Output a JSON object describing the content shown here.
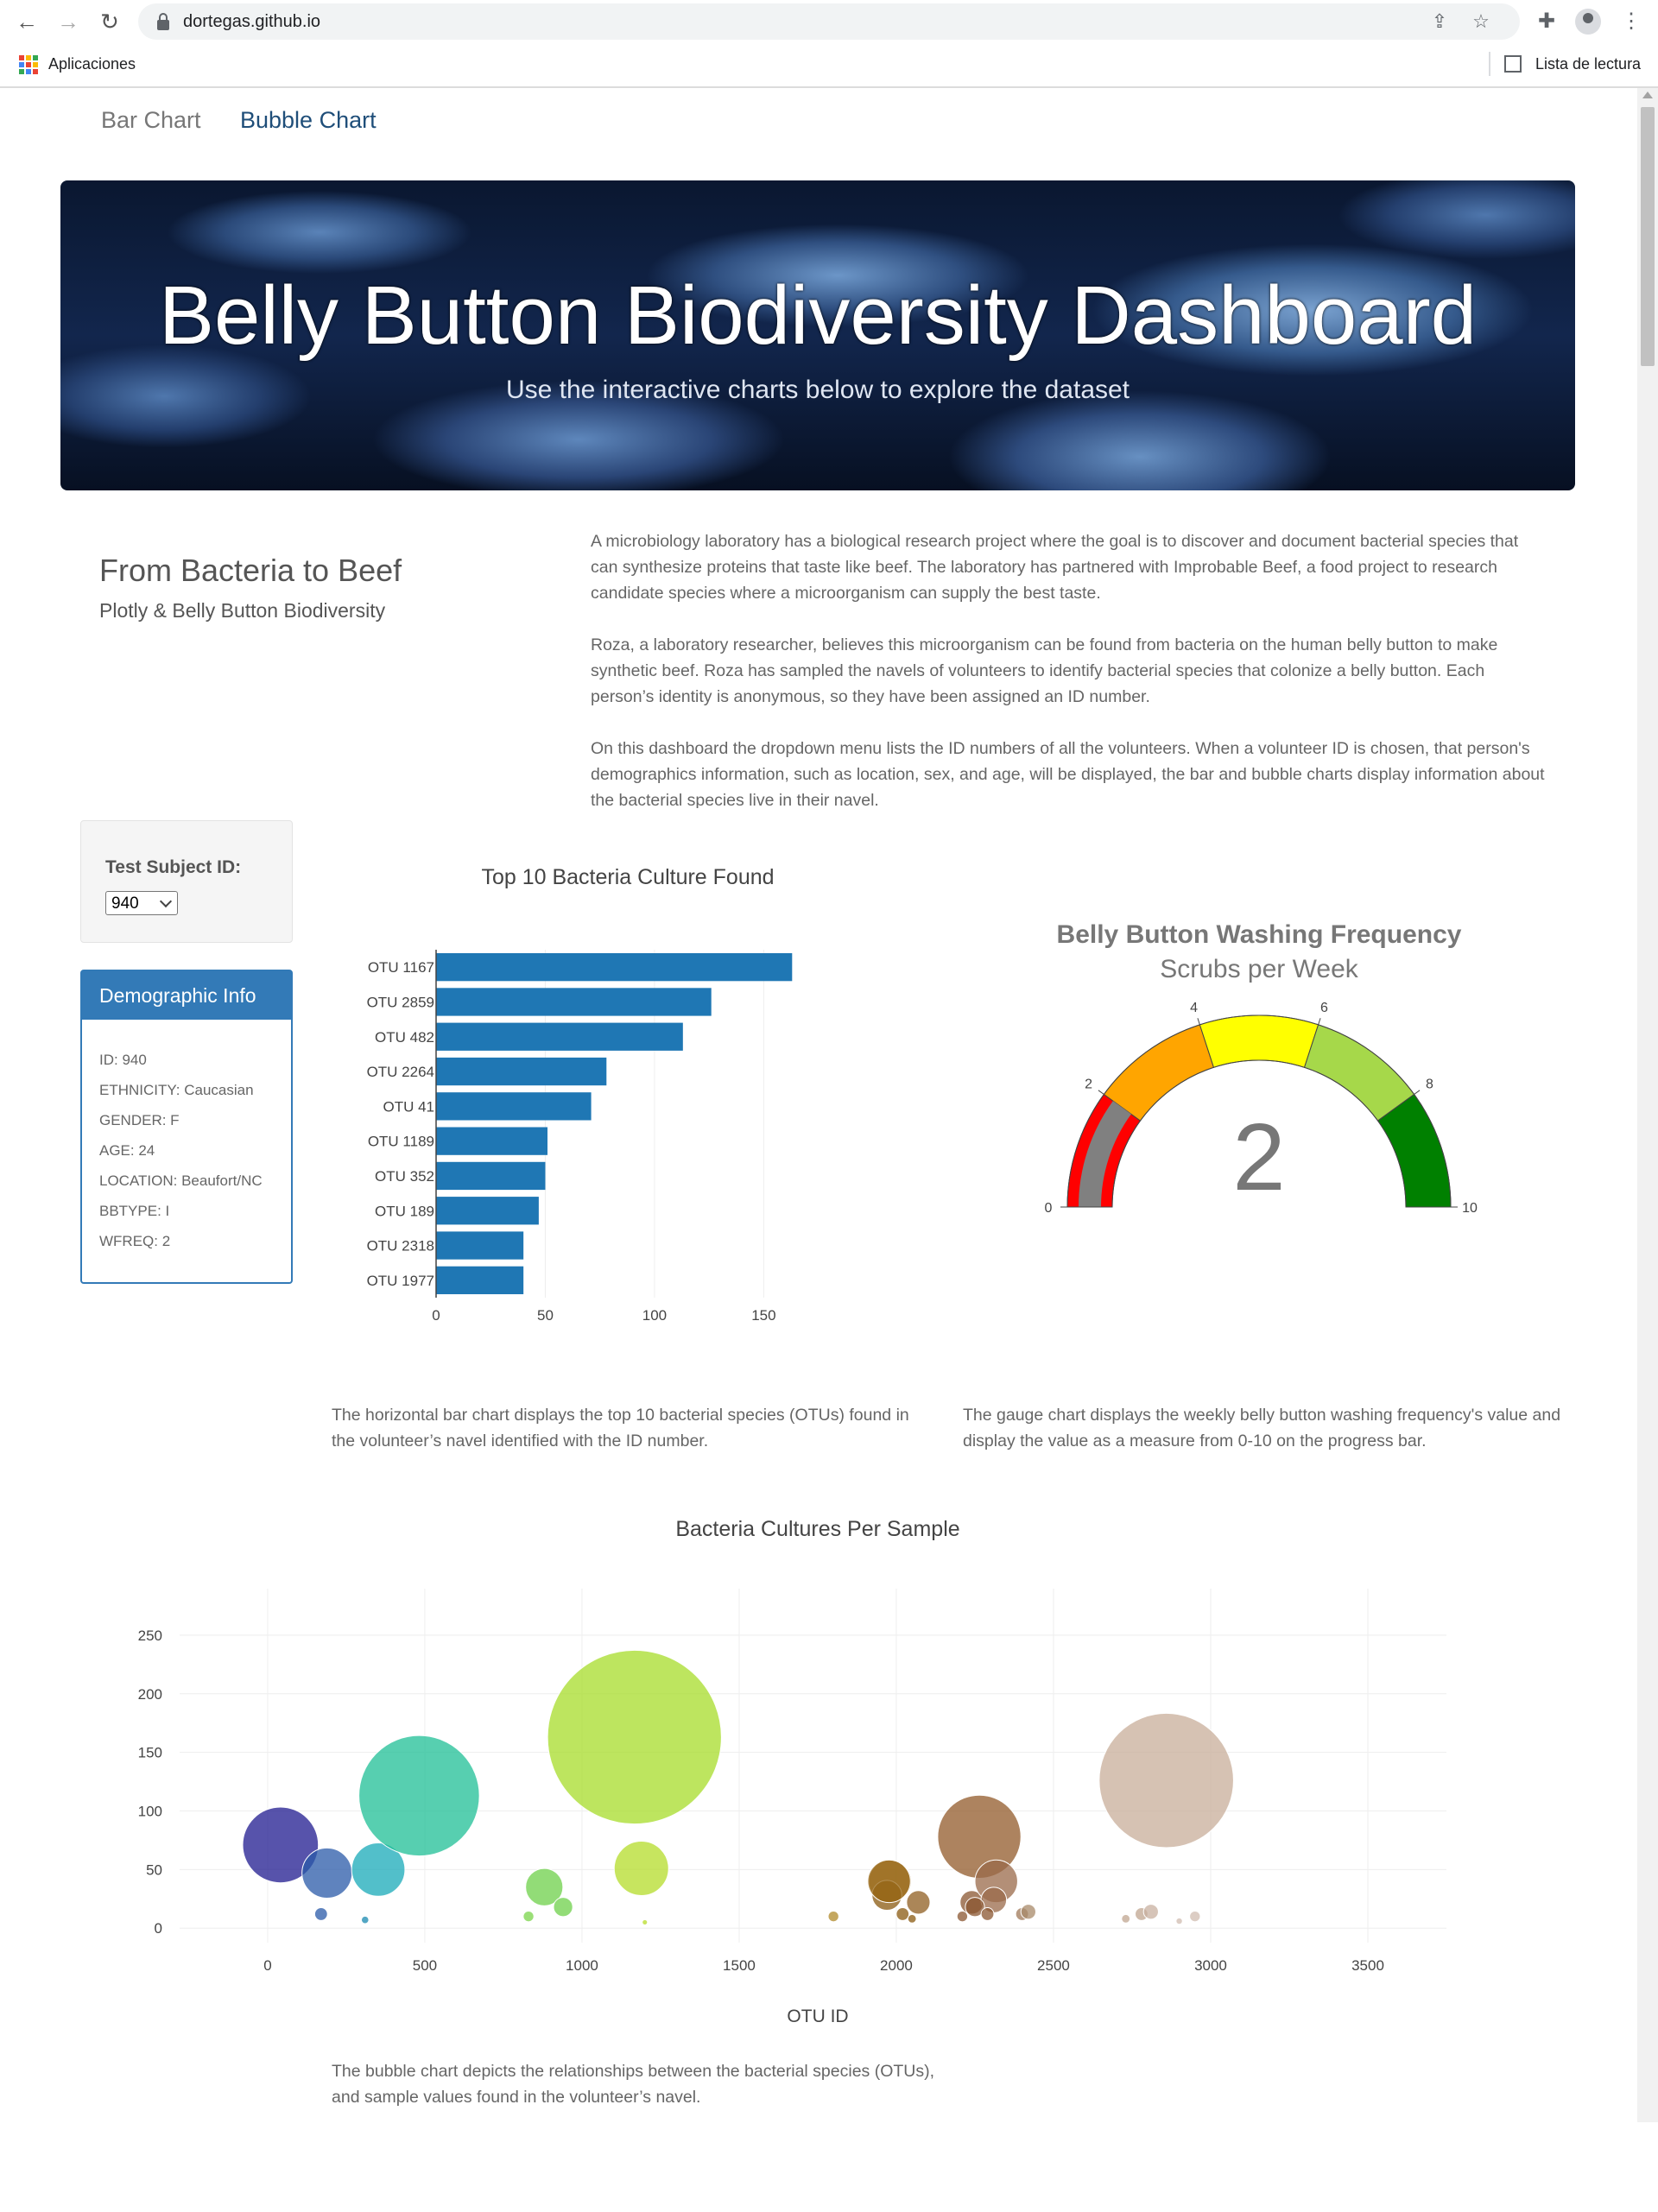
{
  "browser": {
    "url": "dortegas.github.io",
    "apps_label": "Aplicaciones",
    "reading_list_label": "Lista de lectura"
  },
  "nav": {
    "bar_chart": "Bar Chart",
    "bubble_chart": "Bubble Chart"
  },
  "jumbotron": {
    "title": "Belly Button Biodiversity Dashboard",
    "subtitle": "Use the interactive charts below to explore the dataset"
  },
  "intro": {
    "title": "From Bacteria to Beef",
    "subtitle": "Plotly & Belly Button Biodiversity",
    "paragraphs": [
      "A microbiology laboratory has a biological research project where the goal is to discover and document bacterial species that can synthesize proteins that taste like beef. The laboratory has partnered with Improbable Beef, a food project to research candidate species where a microorganism can supply the best taste.",
      "Roza, a laboratory researcher, believes this microorganism can be found from bacteria on the human belly button to make synthetic beef. Roza has sampled the navels of volunteers to identify bacterial species that colonize a belly button. Each person’s identity is anonymous, so they have been assigned an ID number.",
      "On this dashboard the dropdown menu lists the ID numbers of all the volunteers. When a volunteer ID is chosen, that person's demographics information, such as location, sex, and age, will be displayed, the bar and bubble charts display information about the bacterial species live in their navel."
    ]
  },
  "subject": {
    "label": "Test Subject ID:",
    "selected": "940"
  },
  "demographics": {
    "heading": "Demographic Info",
    "lines": [
      "ID: 940",
      "ETHNICITY: Caucasian",
      "GENDER: F",
      "AGE: 24",
      "LOCATION: Beaufort/NC",
      "BBTYPE: I",
      "WFREQ: 2"
    ]
  },
  "descriptions": {
    "bar": "The horizontal bar chart displays the top 10 bacterial species (OTUs) found in the volunteer’s navel identified with the ID number.",
    "gauge": "The gauge chart displays the weekly belly button washing frequency's value and display the value as a measure from 0-10 on the progress bar.",
    "bubble": "The bubble chart depicts the relationships between the bacterial species (OTUs), and sample values found in the volunteer’s navel."
  },
  "chart_data": [
    {
      "type": "bar",
      "orientation": "horizontal",
      "title": "Top 10 Bacteria Culture Found",
      "categories": [
        "OTU 1167",
        "OTU 2859",
        "OTU 482",
        "OTU 2264",
        "OTU 41",
        "OTU 1189",
        "OTU 352",
        "OTU 189",
        "OTU 2318",
        "OTU 1977"
      ],
      "values": [
        163,
        126,
        113,
        78,
        71,
        51,
        50,
        47,
        40,
        40
      ],
      "xlim": [
        0,
        170
      ],
      "xticks": [
        0,
        50,
        100,
        150
      ],
      "color": "#1f77b4"
    },
    {
      "type": "gauge",
      "title": "Belly Button Washing Frequency",
      "subtitle": "Scrubs per Week",
      "value": 2,
      "range": [
        0,
        10
      ],
      "ticks": [
        0,
        2,
        4,
        6,
        8,
        10
      ],
      "steps": [
        {
          "range": [
            0,
            2
          ],
          "color": "#ff0000"
        },
        {
          "range": [
            2,
            4
          ],
          "color": "#ffa500"
        },
        {
          "range": [
            4,
            6
          ],
          "color": "#ffff00"
        },
        {
          "range": [
            6,
            8
          ],
          "color": "#a6d84a"
        },
        {
          "range": [
            8,
            10
          ],
          "color": "#008000"
        }
      ],
      "bar_color": "#808080"
    },
    {
      "type": "scatter",
      "title": "Bacteria Cultures Per Sample",
      "xlabel": "OTU ID",
      "xlim": [
        -280,
        3750
      ],
      "ylim": [
        -5,
        275
      ],
      "xticks": [
        0,
        500,
        1000,
        1500,
        2000,
        2500,
        3000,
        3500
      ],
      "yticks": [
        0,
        50,
        100,
        150,
        200,
        250
      ],
      "points": [
        {
          "x": 41,
          "y": 71,
          "color": "#1f1a8f"
        },
        {
          "x": 189,
          "y": 47,
          "color": "#2a5aa8"
        },
        {
          "x": 352,
          "y": 50,
          "color": "#18a9b8"
        },
        {
          "x": 482,
          "y": 113,
          "color": "#1fbf95"
        },
        {
          "x": 170,
          "y": 12,
          "color": "#2a5aa8"
        },
        {
          "x": 310,
          "y": 7,
          "color": "#1a8ab0"
        },
        {
          "x": 880,
          "y": 35,
          "color": "#6ed04a"
        },
        {
          "x": 940,
          "y": 18,
          "color": "#6ed04a"
        },
        {
          "x": 830,
          "y": 10,
          "color": "#7ad44a"
        },
        {
          "x": 1167,
          "y": 163,
          "color": "#a7dc2a"
        },
        {
          "x": 1189,
          "y": 51,
          "color": "#b4dc2a"
        },
        {
          "x": 1200,
          "y": 5,
          "color": "#b8dc2a"
        },
        {
          "x": 1800,
          "y": 10,
          "color": "#b08a2a"
        },
        {
          "x": 1980,
          "y": 40,
          "color": "#a0701f"
        },
        {
          "x": 1970,
          "y": 28,
          "color": "#8a5a10"
        },
        {
          "x": 1977,
          "y": 40,
          "color": "#9a6a1a"
        },
        {
          "x": 2070,
          "y": 22,
          "color": "#8f5e20"
        },
        {
          "x": 2020,
          "y": 12,
          "color": "#8a5a10"
        },
        {
          "x": 2050,
          "y": 8,
          "color": "#8a5a10"
        },
        {
          "x": 2264,
          "y": 78,
          "color": "#91592a"
        },
        {
          "x": 2240,
          "y": 22,
          "color": "#8a5530"
        },
        {
          "x": 2318,
          "y": 40,
          "color": "#9a6a4a"
        },
        {
          "x": 2310,
          "y": 24,
          "color": "#9a6a4a"
        },
        {
          "x": 2250,
          "y": 18,
          "color": "#8a5530"
        },
        {
          "x": 2290,
          "y": 12,
          "color": "#8a5530"
        },
        {
          "x": 2210,
          "y": 10,
          "color": "#8a5530"
        },
        {
          "x": 2400,
          "y": 12,
          "color": "#a07a5a"
        },
        {
          "x": 2420,
          "y": 14,
          "color": "#a88a6a"
        },
        {
          "x": 2859,
          "y": 126,
          "color": "#c8ad99"
        },
        {
          "x": 2780,
          "y": 12,
          "color": "#c0a590"
        },
        {
          "x": 2810,
          "y": 14,
          "color": "#c8b0a0"
        },
        {
          "x": 2730,
          "y": 8,
          "color": "#c0a590"
        },
        {
          "x": 2950,
          "y": 10,
          "color": "#d0bcb0"
        },
        {
          "x": 2900,
          "y": 6,
          "color": "#d0bcb0"
        }
      ]
    }
  ]
}
